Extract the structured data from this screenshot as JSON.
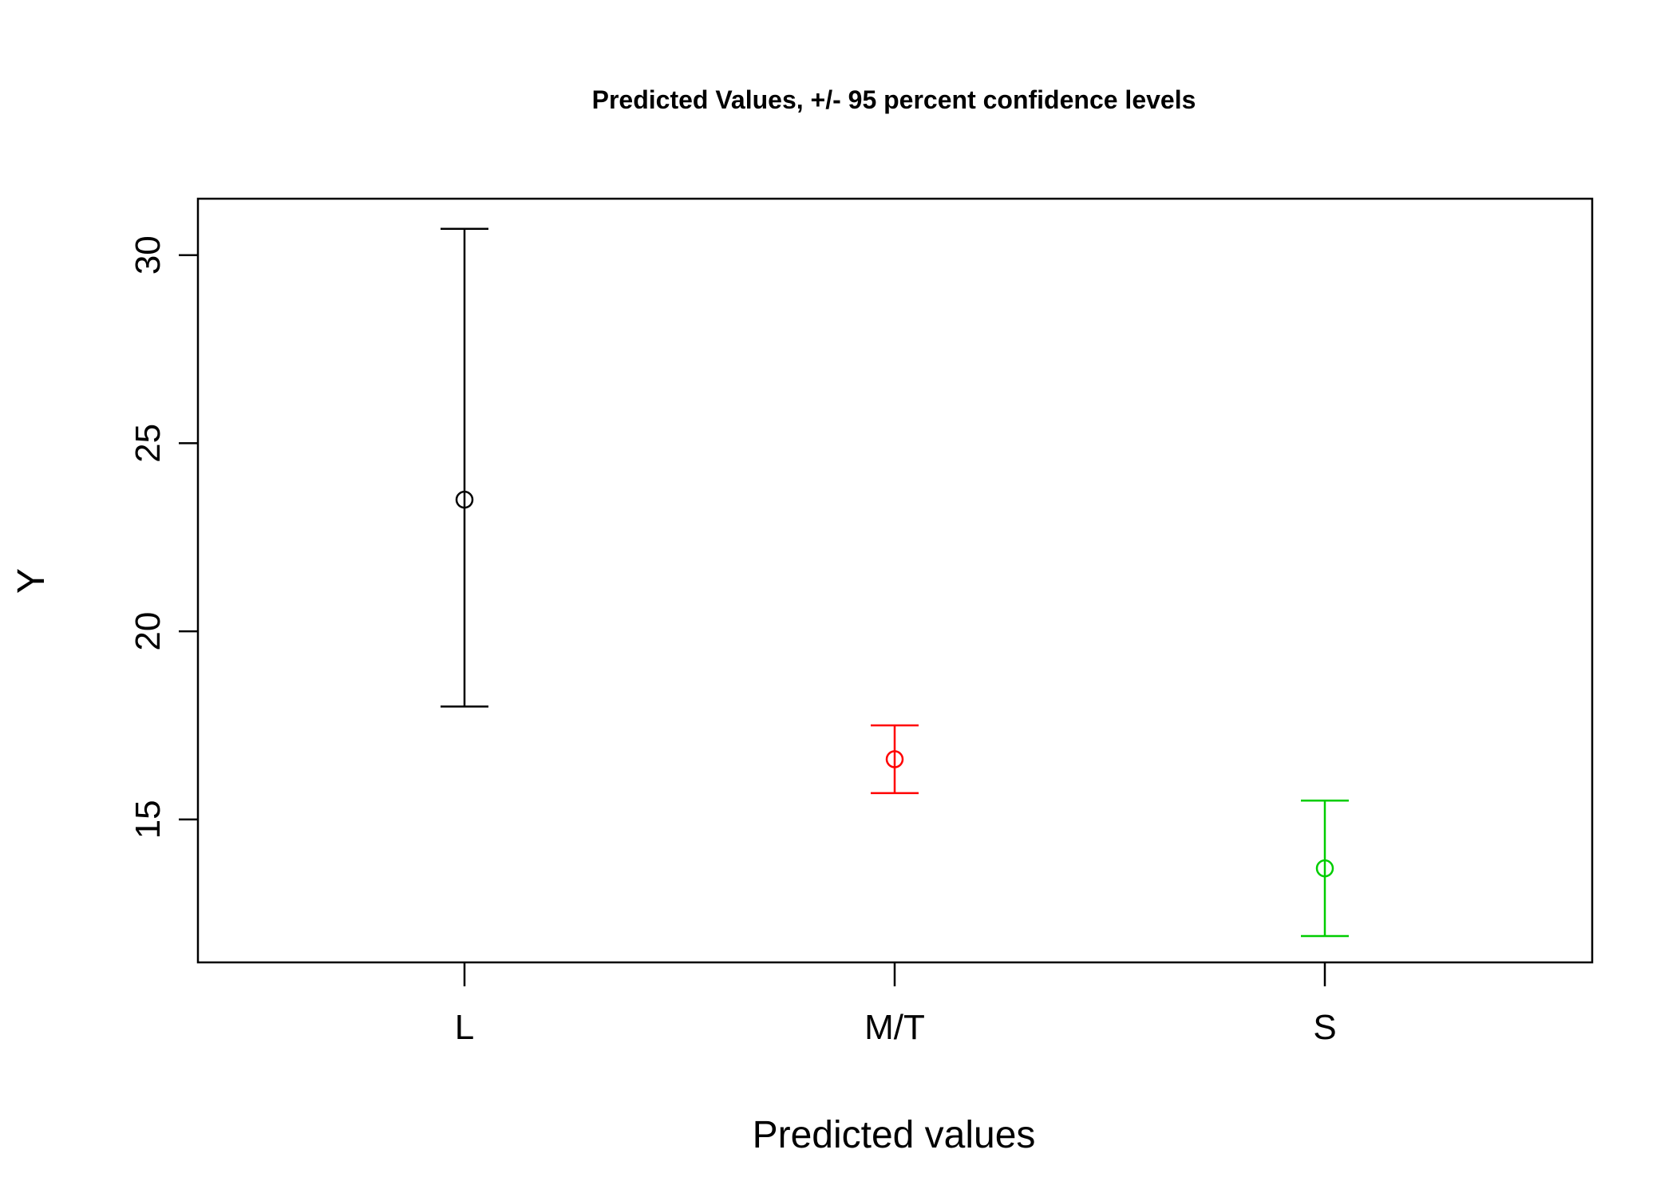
{
  "chart_data": {
    "type": "errorbar",
    "title": "Predicted Values, +/- 95 percent confidence levels",
    "xlabel": "Predicted values",
    "ylabel": "Y",
    "categories": [
      "L",
      "M/T",
      "S"
    ],
    "values": [
      23.5,
      16.6,
      13.7
    ],
    "lower": [
      18.0,
      15.7,
      11.9
    ],
    "upper": [
      30.7,
      17.5,
      15.5
    ],
    "colors": [
      "#000000",
      "#ff0000",
      "#00cd00"
    ],
    "ylim": [
      11.2,
      31.5
    ],
    "yticks": [
      15,
      20,
      25,
      30
    ],
    "ytick_labels": [
      "15",
      "20",
      "25",
      "30"
    ],
    "grid": false,
    "legend": "none"
  }
}
